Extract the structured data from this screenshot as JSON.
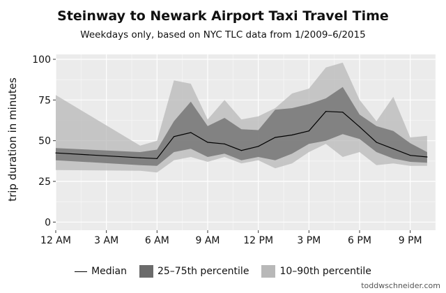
{
  "chart_data": {
    "type": "area",
    "title": "Steinway to Newark Airport Taxi Travel Time",
    "subtitle": "Weekdays only, based on NYC TLC data from 1/2009–6/2015",
    "xlabel": "",
    "ylabel": "trip duration in minutes",
    "credit": "toddwschneider.com",
    "xlim": [
      0,
      22.5
    ],
    "ylim": [
      -5,
      103
    ],
    "x_ticks": [
      {
        "value": 0,
        "label": "12 AM"
      },
      {
        "value": 3,
        "label": "3 AM"
      },
      {
        "value": 6,
        "label": "6 AM"
      },
      {
        "value": 9,
        "label": "9 AM"
      },
      {
        "value": 12,
        "label": "12 PM"
      },
      {
        "value": 15,
        "label": "3 PM"
      },
      {
        "value": 18,
        "label": "6 PM"
      },
      {
        "value": 21,
        "label": "9 PM"
      }
    ],
    "y_ticks": [
      0,
      25,
      50,
      75,
      100
    ],
    "grid": true,
    "legend_position": "bottom",
    "x": [
      0,
      5,
      6,
      7,
      8,
      9,
      10,
      11,
      12,
      13,
      14,
      15,
      16,
      17,
      18,
      19,
      20,
      21,
      22
    ],
    "series": [
      {
        "name": "Median",
        "kind": "line",
        "color": "#000000",
        "values": [
          42.5,
          39.5,
          39,
          52.5,
          55,
          49,
          48,
          44,
          46.5,
          52,
          53.5,
          56,
          68,
          67.5,
          58.5,
          49,
          45,
          41,
          40
        ]
      },
      {
        "name": "25–75th percentile",
        "kind": "band",
        "color": "#6b6b6b",
        "lower": [
          38,
          35,
          34.5,
          43,
          45,
          40,
          42,
          38,
          40,
          38,
          42,
          48,
          50,
          54,
          51,
          43,
          39,
          37,
          36.5
        ],
        "upper": [
          45.5,
          43,
          44.5,
          62,
          74,
          59,
          64,
          57,
          56.5,
          69,
          70,
          72.5,
          76,
          83,
          66,
          59,
          56,
          48.5,
          43
        ]
      },
      {
        "name": "10–90th percentile",
        "kind": "band",
        "color": "#b8b8b8",
        "lower": [
          32,
          31.5,
          30.5,
          38,
          40,
          37,
          40,
          36,
          38,
          33,
          36,
          43,
          48,
          40,
          43,
          35,
          36,
          34.5,
          34.5
        ],
        "upper": [
          78,
          47,
          50,
          87,
          85,
          63,
          75,
          63,
          65,
          70,
          79,
          82,
          95,
          98,
          75,
          62,
          77,
          52,
          53
        ]
      }
    ]
  }
}
